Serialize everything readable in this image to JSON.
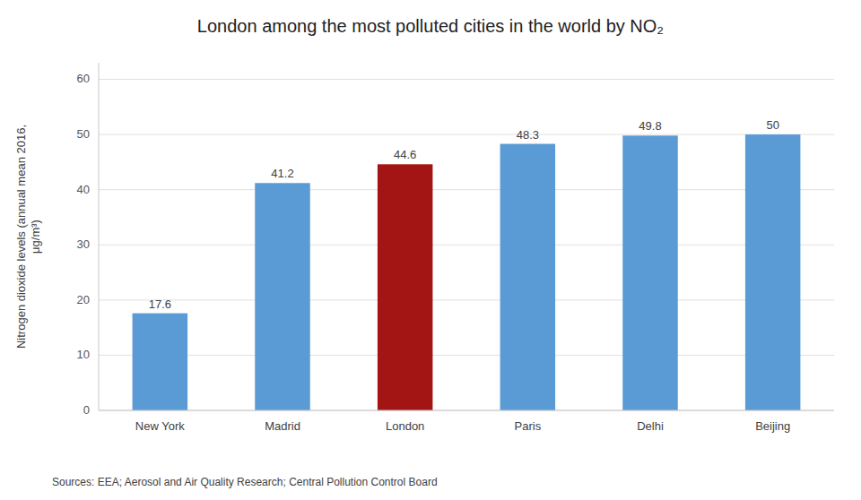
{
  "chart_data": {
    "type": "bar",
    "title": "London among the most polluted cities in the world by NO₂",
    "ylabel": "Nitrogen dioxide levels (annual mean 2016,\nμg/m³)",
    "categories": [
      "New York",
      "Madrid",
      "London",
      "Paris",
      "Delhi",
      "Beijing"
    ],
    "values": [
      17.6,
      41.2,
      44.6,
      48.3,
      49.8,
      50
    ],
    "colors": [
      "#5b9bd5",
      "#5b9bd5",
      "#a31515",
      "#5b9bd5",
      "#5b9bd5",
      "#5b9bd5"
    ],
    "ylim": [
      0,
      63
    ],
    "yticks": [
      0,
      10,
      20,
      30,
      40,
      50,
      60
    ],
    "grid": true,
    "data_labels": true,
    "annotations": [
      "Sources: EEA; Aerosol and Air Quality Research; Central Pollution Control Board"
    ]
  }
}
